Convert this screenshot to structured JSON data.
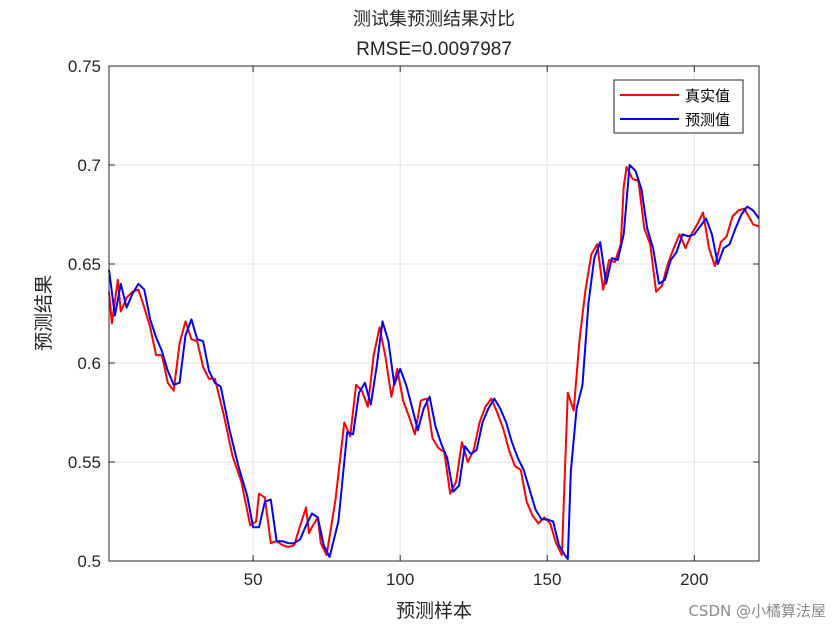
{
  "chart_data": {
    "type": "line",
    "title": "测试集预测结果对比",
    "subtitle": "RMSE=0.0097987",
    "xlabel": "预测样本",
    "ylabel": "预测结果",
    "xlim": [
      1,
      222
    ],
    "ylim": [
      0.5,
      0.75
    ],
    "xticks": [
      50,
      100,
      150,
      200
    ],
    "yticks": [
      0.5,
      0.55,
      0.6,
      0.65,
      0.7,
      0.75
    ],
    "xtick_labels": [
      "50",
      "100",
      "150",
      "200"
    ],
    "ytick_labels": [
      "0.5",
      "0.55",
      "0.6",
      "0.65",
      "0.7",
      "0.75"
    ],
    "grid": true,
    "legend_position": "top-right",
    "series": [
      {
        "name": "真实值",
        "color": "#ff0000",
        "anchors": [
          [
            1,
            0.636
          ],
          [
            2,
            0.62
          ],
          [
            4,
            0.642
          ],
          [
            5,
            0.626
          ],
          [
            7,
            0.633
          ],
          [
            9,
            0.636
          ],
          [
            11,
            0.637
          ],
          [
            13,
            0.628
          ],
          [
            15,
            0.618
          ],
          [
            17,
            0.604
          ],
          [
            19,
            0.604
          ],
          [
            21,
            0.59
          ],
          [
            23,
            0.586
          ],
          [
            25,
            0.61
          ],
          [
            27,
            0.621
          ],
          [
            29,
            0.612
          ],
          [
            31,
            0.611
          ],
          [
            33,
            0.598
          ],
          [
            35,
            0.592
          ],
          [
            37,
            0.592
          ],
          [
            40,
            0.574
          ],
          [
            43,
            0.553
          ],
          [
            46,
            0.54
          ],
          [
            49,
            0.518
          ],
          [
            51,
            0.52
          ],
          [
            52,
            0.534
          ],
          [
            54,
            0.532
          ],
          [
            56,
            0.509
          ],
          [
            58,
            0.51
          ],
          [
            60,
            0.508
          ],
          [
            62,
            0.507
          ],
          [
            64,
            0.508
          ],
          [
            66,
            0.518
          ],
          [
            68,
            0.527
          ],
          [
            69,
            0.514
          ],
          [
            70,
            0.517
          ],
          [
            72,
            0.522
          ],
          [
            73,
            0.509
          ],
          [
            75,
            0.503
          ],
          [
            78,
            0.531
          ],
          [
            81,
            0.57
          ],
          [
            83,
            0.563
          ],
          [
            85,
            0.589
          ],
          [
            87,
            0.586
          ],
          [
            89,
            0.578
          ],
          [
            91,
            0.604
          ],
          [
            93,
            0.618
          ],
          [
            95,
            0.603
          ],
          [
            97,
            0.583
          ],
          [
            99,
            0.597
          ],
          [
            101,
            0.581
          ],
          [
            103,
            0.573
          ],
          [
            105,
            0.564
          ],
          [
            107,
            0.581
          ],
          [
            109,
            0.582
          ],
          [
            111,
            0.562
          ],
          [
            113,
            0.557
          ],
          [
            115,
            0.555
          ],
          [
            117,
            0.534
          ],
          [
            119,
            0.54
          ],
          [
            121,
            0.56
          ],
          [
            123,
            0.55
          ],
          [
            125,
            0.556
          ],
          [
            127,
            0.57
          ],
          [
            129,
            0.578
          ],
          [
            131,
            0.582
          ],
          [
            133,
            0.575
          ],
          [
            135,
            0.567
          ],
          [
            137,
            0.556
          ],
          [
            139,
            0.548
          ],
          [
            141,
            0.546
          ],
          [
            143,
            0.53
          ],
          [
            145,
            0.523
          ],
          [
            147,
            0.519
          ],
          [
            149,
            0.522
          ],
          [
            151,
            0.519
          ],
          [
            153,
            0.509
          ],
          [
            155,
            0.503
          ],
          [
            156,
            0.545
          ],
          [
            157,
            0.585
          ],
          [
            159,
            0.576
          ],
          [
            161,
            0.612
          ],
          [
            163,
            0.637
          ],
          [
            165,
            0.655
          ],
          [
            167,
            0.66
          ],
          [
            169,
            0.637
          ],
          [
            171,
            0.652
          ],
          [
            173,
            0.651
          ],
          [
            175,
            0.66
          ],
          [
            176,
            0.689
          ],
          [
            177,
            0.699
          ],
          [
            179,
            0.693
          ],
          [
            181,
            0.692
          ],
          [
            183,
            0.668
          ],
          [
            185,
            0.66
          ],
          [
            187,
            0.636
          ],
          [
            189,
            0.639
          ],
          [
            191,
            0.65
          ],
          [
            193,
            0.658
          ],
          [
            195,
            0.665
          ],
          [
            197,
            0.658
          ],
          [
            199,
            0.665
          ],
          [
            201,
            0.67
          ],
          [
            203,
            0.676
          ],
          [
            205,
            0.658
          ],
          [
            207,
            0.649
          ],
          [
            209,
            0.661
          ],
          [
            211,
            0.664
          ],
          [
            213,
            0.674
          ],
          [
            215,
            0.677
          ],
          [
            217,
            0.678
          ],
          [
            220,
            0.67
          ],
          [
            222,
            0.669
          ]
        ]
      },
      {
        "name": "预测值",
        "color": "#0000ff",
        "anchors": [
          [
            1,
            0.647
          ],
          [
            3,
            0.624
          ],
          [
            5,
            0.64
          ],
          [
            7,
            0.628
          ],
          [
            9,
            0.635
          ],
          [
            11,
            0.64
          ],
          [
            13,
            0.637
          ],
          [
            15,
            0.622
          ],
          [
            17,
            0.613
          ],
          [
            19,
            0.606
          ],
          [
            21,
            0.596
          ],
          [
            23,
            0.589
          ],
          [
            25,
            0.59
          ],
          [
            27,
            0.614
          ],
          [
            29,
            0.622
          ],
          [
            31,
            0.612
          ],
          [
            33,
            0.611
          ],
          [
            35,
            0.596
          ],
          [
            37,
            0.59
          ],
          [
            39,
            0.588
          ],
          [
            42,
            0.566
          ],
          [
            45,
            0.548
          ],
          [
            48,
            0.533
          ],
          [
            50,
            0.517
          ],
          [
            52,
            0.517
          ],
          [
            54,
            0.53
          ],
          [
            56,
            0.531
          ],
          [
            58,
            0.51
          ],
          [
            60,
            0.51
          ],
          [
            62,
            0.509
          ],
          [
            64,
            0.509
          ],
          [
            66,
            0.511
          ],
          [
            68,
            0.518
          ],
          [
            70,
            0.524
          ],
          [
            72,
            0.522
          ],
          [
            74,
            0.508
          ],
          [
            76,
            0.502
          ],
          [
            79,
            0.52
          ],
          [
            82,
            0.565
          ],
          [
            84,
            0.564
          ],
          [
            86,
            0.585
          ],
          [
            88,
            0.59
          ],
          [
            90,
            0.579
          ],
          [
            92,
            0.598
          ],
          [
            94,
            0.621
          ],
          [
            96,
            0.611
          ],
          [
            98,
            0.589
          ],
          [
            100,
            0.597
          ],
          [
            102,
            0.589
          ],
          [
            104,
            0.578
          ],
          [
            106,
            0.566
          ],
          [
            108,
            0.577
          ],
          [
            110,
            0.583
          ],
          [
            112,
            0.568
          ],
          [
            114,
            0.559
          ],
          [
            116,
            0.552
          ],
          [
            118,
            0.535
          ],
          [
            120,
            0.538
          ],
          [
            122,
            0.558
          ],
          [
            124,
            0.554
          ],
          [
            126,
            0.556
          ],
          [
            128,
            0.57
          ],
          [
            130,
            0.577
          ],
          [
            132,
            0.582
          ],
          [
            134,
            0.577
          ],
          [
            136,
            0.57
          ],
          [
            138,
            0.56
          ],
          [
            140,
            0.552
          ],
          [
            142,
            0.546
          ],
          [
            144,
            0.536
          ],
          [
            146,
            0.526
          ],
          [
            148,
            0.521
          ],
          [
            150,
            0.521
          ],
          [
            152,
            0.52
          ],
          [
            154,
            0.508
          ],
          [
            156,
            0.503
          ],
          [
            157,
            0.501
          ],
          [
            158,
            0.545
          ],
          [
            160,
            0.577
          ],
          [
            162,
            0.589
          ],
          [
            164,
            0.63
          ],
          [
            166,
            0.653
          ],
          [
            168,
            0.661
          ],
          [
            170,
            0.64
          ],
          [
            172,
            0.653
          ],
          [
            174,
            0.652
          ],
          [
            176,
            0.665
          ],
          [
            177,
            0.682
          ],
          [
            178,
            0.7
          ],
          [
            180,
            0.697
          ],
          [
            182,
            0.688
          ],
          [
            184,
            0.668
          ],
          [
            186,
            0.658
          ],
          [
            188,
            0.64
          ],
          [
            190,
            0.642
          ],
          [
            192,
            0.652
          ],
          [
            194,
            0.656
          ],
          [
            196,
            0.665
          ],
          [
            198,
            0.664
          ],
          [
            200,
            0.665
          ],
          [
            202,
            0.669
          ],
          [
            204,
            0.673
          ],
          [
            206,
            0.665
          ],
          [
            208,
            0.65
          ],
          [
            210,
            0.658
          ],
          [
            212,
            0.66
          ],
          [
            214,
            0.668
          ],
          [
            216,
            0.675
          ],
          [
            218,
            0.679
          ],
          [
            220,
            0.677
          ],
          [
            222,
            0.673
          ]
        ]
      }
    ]
  },
  "watermark": "CSDN @小橘算法屋"
}
